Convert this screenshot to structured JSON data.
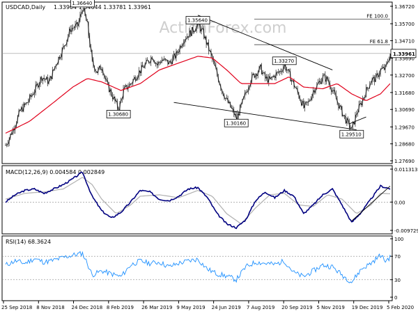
{
  "header": {
    "symbol": "USDCAD,Daily",
    "ohlc": "1.33904 1.34644 1.33781 1.33961"
  },
  "watermark": "ActionForex.com",
  "colors": {
    "candle": "#222222",
    "sma": "#e0001b",
    "macd": "#000080",
    "macd_signal": "#b0b0b0",
    "rsi": "#1e90ff",
    "trendline": "#000000",
    "level_line": "#444444",
    "grid": "#888888",
    "frame": "#000000",
    "price_tag_bg": "#ffffff"
  },
  "chart_data": [
    {
      "type": "candlestick",
      "panel": "price",
      "title": "USDCAD,Daily",
      "y_ticks": [
        "1.36720",
        "1.35700",
        "1.34710",
        "1.33690",
        "1.32700",
        "1.31680",
        "1.30690",
        "1.29670",
        "1.28680",
        "1.27690"
      ],
      "x_ticks": [
        "25 Sep 2018",
        "8 Nov 2018",
        "24 Dec 2018",
        "8 Feb 2019",
        "26 Mar 2019",
        "9 May 2019",
        "24 Jun 2019",
        "7 Aug 2019",
        "20 Sep 2019",
        "5 Nov 2019",
        "19 Dec 2019",
        "5 Feb 2020"
      ],
      "ylim": [
        1.2769,
        1.3672
      ],
      "current_price": "1.33961",
      "close_path": [
        [
          0,
          1.286
        ],
        [
          3,
          1.295
        ],
        [
          6,
          1.306
        ],
        [
          9,
          1.311
        ],
        [
          12,
          1.318
        ],
        [
          15,
          1.326
        ],
        [
          18,
          1.323
        ],
        [
          21,
          1.334
        ],
        [
          24,
          1.343
        ],
        [
          27,
          1.354
        ],
        [
          30,
          1.356
        ],
        [
          32,
          1.3664
        ],
        [
          34,
          1.356
        ],
        [
          36,
          1.334
        ],
        [
          38,
          1.329
        ],
        [
          40,
          1.332
        ],
        [
          42,
          1.322
        ],
        [
          45,
          1.313
        ],
        [
          47,
          1.3068
        ],
        [
          49,
          1.318
        ],
        [
          52,
          1.322
        ],
        [
          55,
          1.328
        ],
        [
          58,
          1.333
        ],
        [
          61,
          1.338
        ],
        [
          63,
          1.333
        ],
        [
          65,
          1.336
        ],
        [
          68,
          1.334
        ],
        [
          71,
          1.339
        ],
        [
          74,
          1.348
        ],
        [
          77,
          1.352
        ],
        [
          80,
          1.3564
        ],
        [
          82,
          1.352
        ],
        [
          84,
          1.344
        ],
        [
          86,
          1.336
        ],
        [
          88,
          1.327
        ],
        [
          90,
          1.318
        ],
        [
          92,
          1.312
        ],
        [
          94,
          1.307
        ],
        [
          96,
          1.3016
        ],
        [
          98,
          1.309
        ],
        [
          100,
          1.317
        ],
        [
          102,
          1.325
        ],
        [
          104,
          1.328
        ],
        [
          106,
          1.331
        ],
        [
          108,
          1.325
        ],
        [
          110,
          1.324
        ],
        [
          112,
          1.327
        ],
        [
          114,
          1.329
        ],
        [
          116,
          1.3327
        ],
        [
          118,
          1.327
        ],
        [
          120,
          1.321
        ],
        [
          122,
          1.315
        ],
        [
          124,
          1.308
        ],
        [
          126,
          1.311
        ],
        [
          128,
          1.318
        ],
        [
          130,
          1.322
        ],
        [
          132,
          1.326
        ],
        [
          134,
          1.324
        ],
        [
          136,
          1.318
        ],
        [
          138,
          1.311
        ],
        [
          140,
          1.305
        ],
        [
          142,
          1.2995
        ],
        [
          144,
          1.2951
        ],
        [
          146,
          1.305
        ],
        [
          148,
          1.311
        ],
        [
          150,
          1.318
        ],
        [
          152,
          1.324
        ],
        [
          154,
          1.325
        ],
        [
          156,
          1.33
        ],
        [
          158,
          1.331
        ],
        [
          160,
          1.3396
        ]
      ],
      "sma_path": [
        [
          0,
          1.293
        ],
        [
          10,
          1.3
        ],
        [
          20,
          1.311
        ],
        [
          28,
          1.32
        ],
        [
          34,
          1.325
        ],
        [
          40,
          1.323
        ],
        [
          48,
          1.318
        ],
        [
          56,
          1.322
        ],
        [
          64,
          1.33
        ],
        [
          72,
          1.334
        ],
        [
          80,
          1.338
        ],
        [
          86,
          1.337
        ],
        [
          92,
          1.33
        ],
        [
          98,
          1.322
        ],
        [
          104,
          1.322
        ],
        [
          112,
          1.322
        ],
        [
          118,
          1.326
        ],
        [
          124,
          1.32
        ],
        [
          132,
          1.319
        ],
        [
          138,
          1.322
        ],
        [
          144,
          1.316
        ],
        [
          150,
          1.312
        ],
        [
          156,
          1.316
        ],
        [
          160,
          1.322
        ]
      ],
      "trendlines": [
        {
          "from": [
            80,
            1.362
          ],
          "to": [
            136,
            1.33
          ]
        },
        {
          "from": [
            70,
            1.311
          ],
          "to": [
            146,
            1.295
          ]
        },
        {
          "from": [
            143,
            1.2985
          ],
          "to": [
            150,
            1.3025
          ]
        }
      ],
      "levels": [
        {
          "label": "FE 100.0",
          "value": 1.35963
        },
        {
          "label": "FE 61.8",
          "value": 1.34475
        }
      ],
      "annotations": [
        {
          "text": "1.36640",
          "x": 32,
          "y": 1.3664
        },
        {
          "text": "1.30680",
          "x": 47,
          "y": 1.3068
        },
        {
          "text": "1.35640",
          "x": 80,
          "y": 1.3564
        },
        {
          "text": "1.30160",
          "x": 96,
          "y": 1.3016
        },
        {
          "text": "1.33270",
          "x": 116,
          "y": 1.3327
        },
        {
          "text": "1.29510",
          "x": 144,
          "y": 1.2951
        }
      ]
    },
    {
      "type": "line",
      "panel": "macd",
      "title": "MACD(12,26,9) 0.004584 0.002849",
      "y_ticks": [
        "0.011313",
        "0.00",
        "-0.009729"
      ],
      "ylim": [
        -0.009729,
        0.011313
      ],
      "series": [
        {
          "name": "",
          "values": [
            [
              0,
              0.0
            ],
            [
              4,
              0.0025
            ],
            [
              8,
              0.004
            ],
            [
              12,
              0.0045
            ],
            [
              16,
              0.003
            ],
            [
              20,
              0.0045
            ],
            [
              24,
              0.006
            ],
            [
              28,
              0.008
            ],
            [
              32,
              0.0103
            ],
            [
              36,
              0.002
            ],
            [
              40,
              -0.003
            ],
            [
              44,
              -0.0055
            ],
            [
              48,
              -0.0035
            ],
            [
              52,
              0.0
            ],
            [
              56,
              0.004
            ],
            [
              60,
              0.0035
            ],
            [
              64,
              0.001
            ],
            [
              68,
              0.0005
            ],
            [
              72,
              0.002
            ],
            [
              76,
              0.0045
            ],
            [
              80,
              0.005
            ],
            [
              84,
              0.0015
            ],
            [
              88,
              -0.004
            ],
            [
              92,
              -0.0075
            ],
            [
              96,
              -0.0088
            ],
            [
              100,
              -0.006
            ],
            [
              104,
              0.0005
            ],
            [
              108,
              0.0035
            ],
            [
              112,
              0.0015
            ],
            [
              116,
              0.004
            ],
            [
              120,
              0.002
            ],
            [
              124,
              -0.004
            ],
            [
              128,
              -0.001
            ],
            [
              132,
              0.0025
            ],
            [
              136,
              0.0045
            ],
            [
              140,
              -0.001
            ],
            [
              144,
              -0.007
            ],
            [
              148,
              -0.0035
            ],
            [
              152,
              0.001
            ],
            [
              156,
              0.0055
            ],
            [
              160,
              0.004584
            ]
          ]
        },
        {
          "name": "",
          "values": [
            [
              0,
              0.001
            ],
            [
              8,
              0.003
            ],
            [
              16,
              0.0035
            ],
            [
              24,
              0.0045
            ],
            [
              32,
              0.0085
            ],
            [
              36,
              0.006
            ],
            [
              40,
              0.001
            ],
            [
              46,
              -0.004
            ],
            [
              52,
              -0.001
            ],
            [
              56,
              0.002
            ],
            [
              64,
              0.0025
            ],
            [
              72,
              0.0015
            ],
            [
              80,
              0.004
            ],
            [
              86,
              0.002
            ],
            [
              92,
              -0.004
            ],
            [
              98,
              -0.0075
            ],
            [
              104,
              -0.002
            ],
            [
              110,
              0.0025
            ],
            [
              116,
              0.003
            ],
            [
              122,
              -0.001
            ],
            [
              128,
              -0.0015
            ],
            [
              134,
              0.0025
            ],
            [
              140,
              0.001
            ],
            [
              146,
              -0.004
            ],
            [
              152,
              -0.001
            ],
            [
              156,
              0.003
            ],
            [
              160,
              0.002849
            ]
          ]
        }
      ],
      "trendline": {
        "from": [
          144,
          -0.0065
        ],
        "to": [
          160,
          0.0055
        ]
      }
    },
    {
      "type": "line",
      "panel": "rsi",
      "title": "RSI(14) 68.3624",
      "y_ticks": [
        "100",
        "70",
        "30",
        "0"
      ],
      "ylim": [
        0,
        100
      ],
      "guides": [
        70,
        30
      ],
      "series": [
        {
          "name": "",
          "values": [
            [
              0,
              55
            ],
            [
              4,
              62
            ],
            [
              8,
              58
            ],
            [
              12,
              66
            ],
            [
              16,
              60
            ],
            [
              20,
              63
            ],
            [
              24,
              68
            ],
            [
              28,
              72
            ],
            [
              32,
              75
            ],
            [
              34,
              58
            ],
            [
              36,
              38
            ],
            [
              40,
              45
            ],
            [
              44,
              40
            ],
            [
              48,
              35
            ],
            [
              52,
              55
            ],
            [
              56,
              62
            ],
            [
              60,
              58
            ],
            [
              64,
              60
            ],
            [
              68,
              52
            ],
            [
              72,
              58
            ],
            [
              76,
              62
            ],
            [
              80,
              65
            ],
            [
              84,
              48
            ],
            [
              88,
              40
            ],
            [
              92,
              36
            ],
            [
              96,
              30
            ],
            [
              100,
              52
            ],
            [
              104,
              60
            ],
            [
              108,
              58
            ],
            [
              112,
              56
            ],
            [
              116,
              62
            ],
            [
              120,
              42
            ],
            [
              124,
              35
            ],
            [
              128,
              45
            ],
            [
              132,
              55
            ],
            [
              136,
              52
            ],
            [
              140,
              38
            ],
            [
              144,
              26
            ],
            [
              148,
              48
            ],
            [
              152,
              58
            ],
            [
              156,
              72
            ],
            [
              158,
              62
            ],
            [
              160,
              68.3624
            ]
          ]
        }
      ]
    }
  ]
}
